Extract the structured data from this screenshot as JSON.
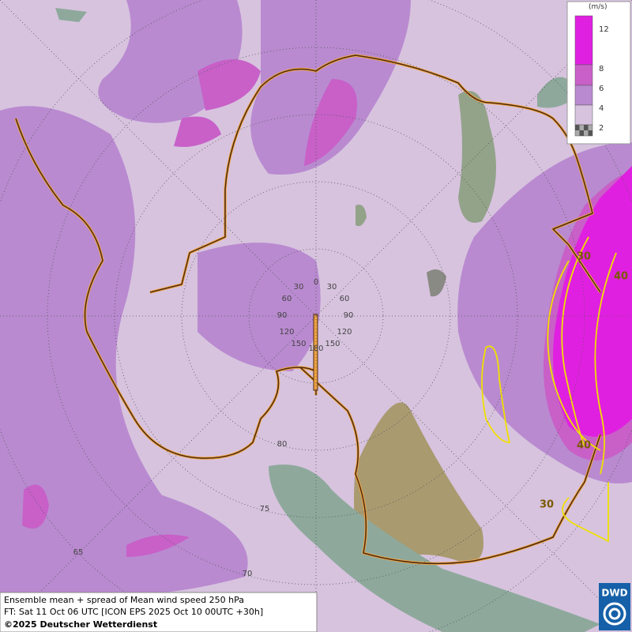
{
  "legend": {
    "unit": "(m/s)",
    "ticks": [
      "12",
      "8",
      "6",
      "4",
      "2"
    ]
  },
  "graticule": {
    "longitude_labels": [
      "0",
      "30",
      "30",
      "60",
      "60",
      "90",
      "90",
      "120",
      "120",
      "150",
      "150",
      "180"
    ],
    "latitude_labels": [
      "80",
      "75",
      "70",
      "65"
    ]
  },
  "contour_labels": [
    "30",
    "40",
    "40",
    "30"
  ],
  "footer": {
    "line1": "Ensemble mean + spread of Mean wind speed 250 hPa",
    "line2": "FT: Sat 11 Oct 06 UTC [ICON EPS 2025 Oct 10 00UTC +30h]",
    "line3": "©2025 Deutscher Wetterdienst"
  },
  "logo": "DWD"
}
